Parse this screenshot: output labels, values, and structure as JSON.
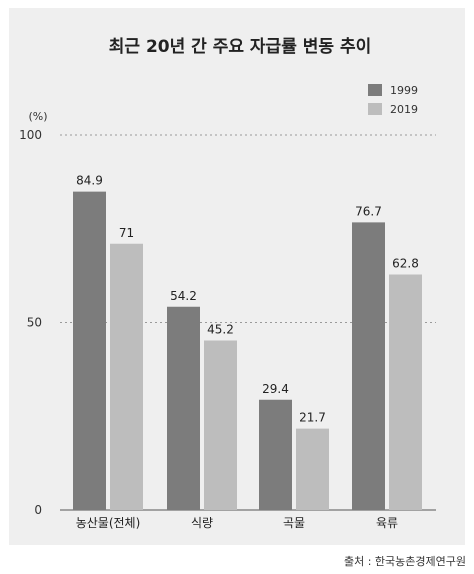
{
  "source": "출처 : 한국농촌경제연구원",
  "colors": {
    "background": "#efefef",
    "series_1999": "#7c7c7c",
    "series_2019": "#bdbdbd",
    "grid": "#9a9a9a",
    "text": "#222222"
  },
  "chart_data": {
    "type": "bar",
    "title": "최근 20년 간 주요 자급률 변동 추이",
    "ylabel": "(%)",
    "xlabel": "",
    "ylim": [
      0,
      100
    ],
    "yticks": [
      0,
      50,
      100
    ],
    "grid": true,
    "legend_position": "top-right",
    "categories": [
      "농산물(전체)",
      "식량",
      "곡물",
      "육류"
    ],
    "series": [
      {
        "name": "1999",
        "values": [
          84.9,
          54.2,
          29.4,
          76.7
        ],
        "labels": [
          "84.9",
          "54.2",
          "29.4",
          "76.7"
        ],
        "color": "#7c7c7c"
      },
      {
        "name": "2019",
        "values": [
          71,
          45.2,
          21.7,
          62.8
        ],
        "labels": [
          "71",
          "45.2",
          "21.7",
          "62.8"
        ],
        "color": "#bdbdbd"
      }
    ]
  }
}
